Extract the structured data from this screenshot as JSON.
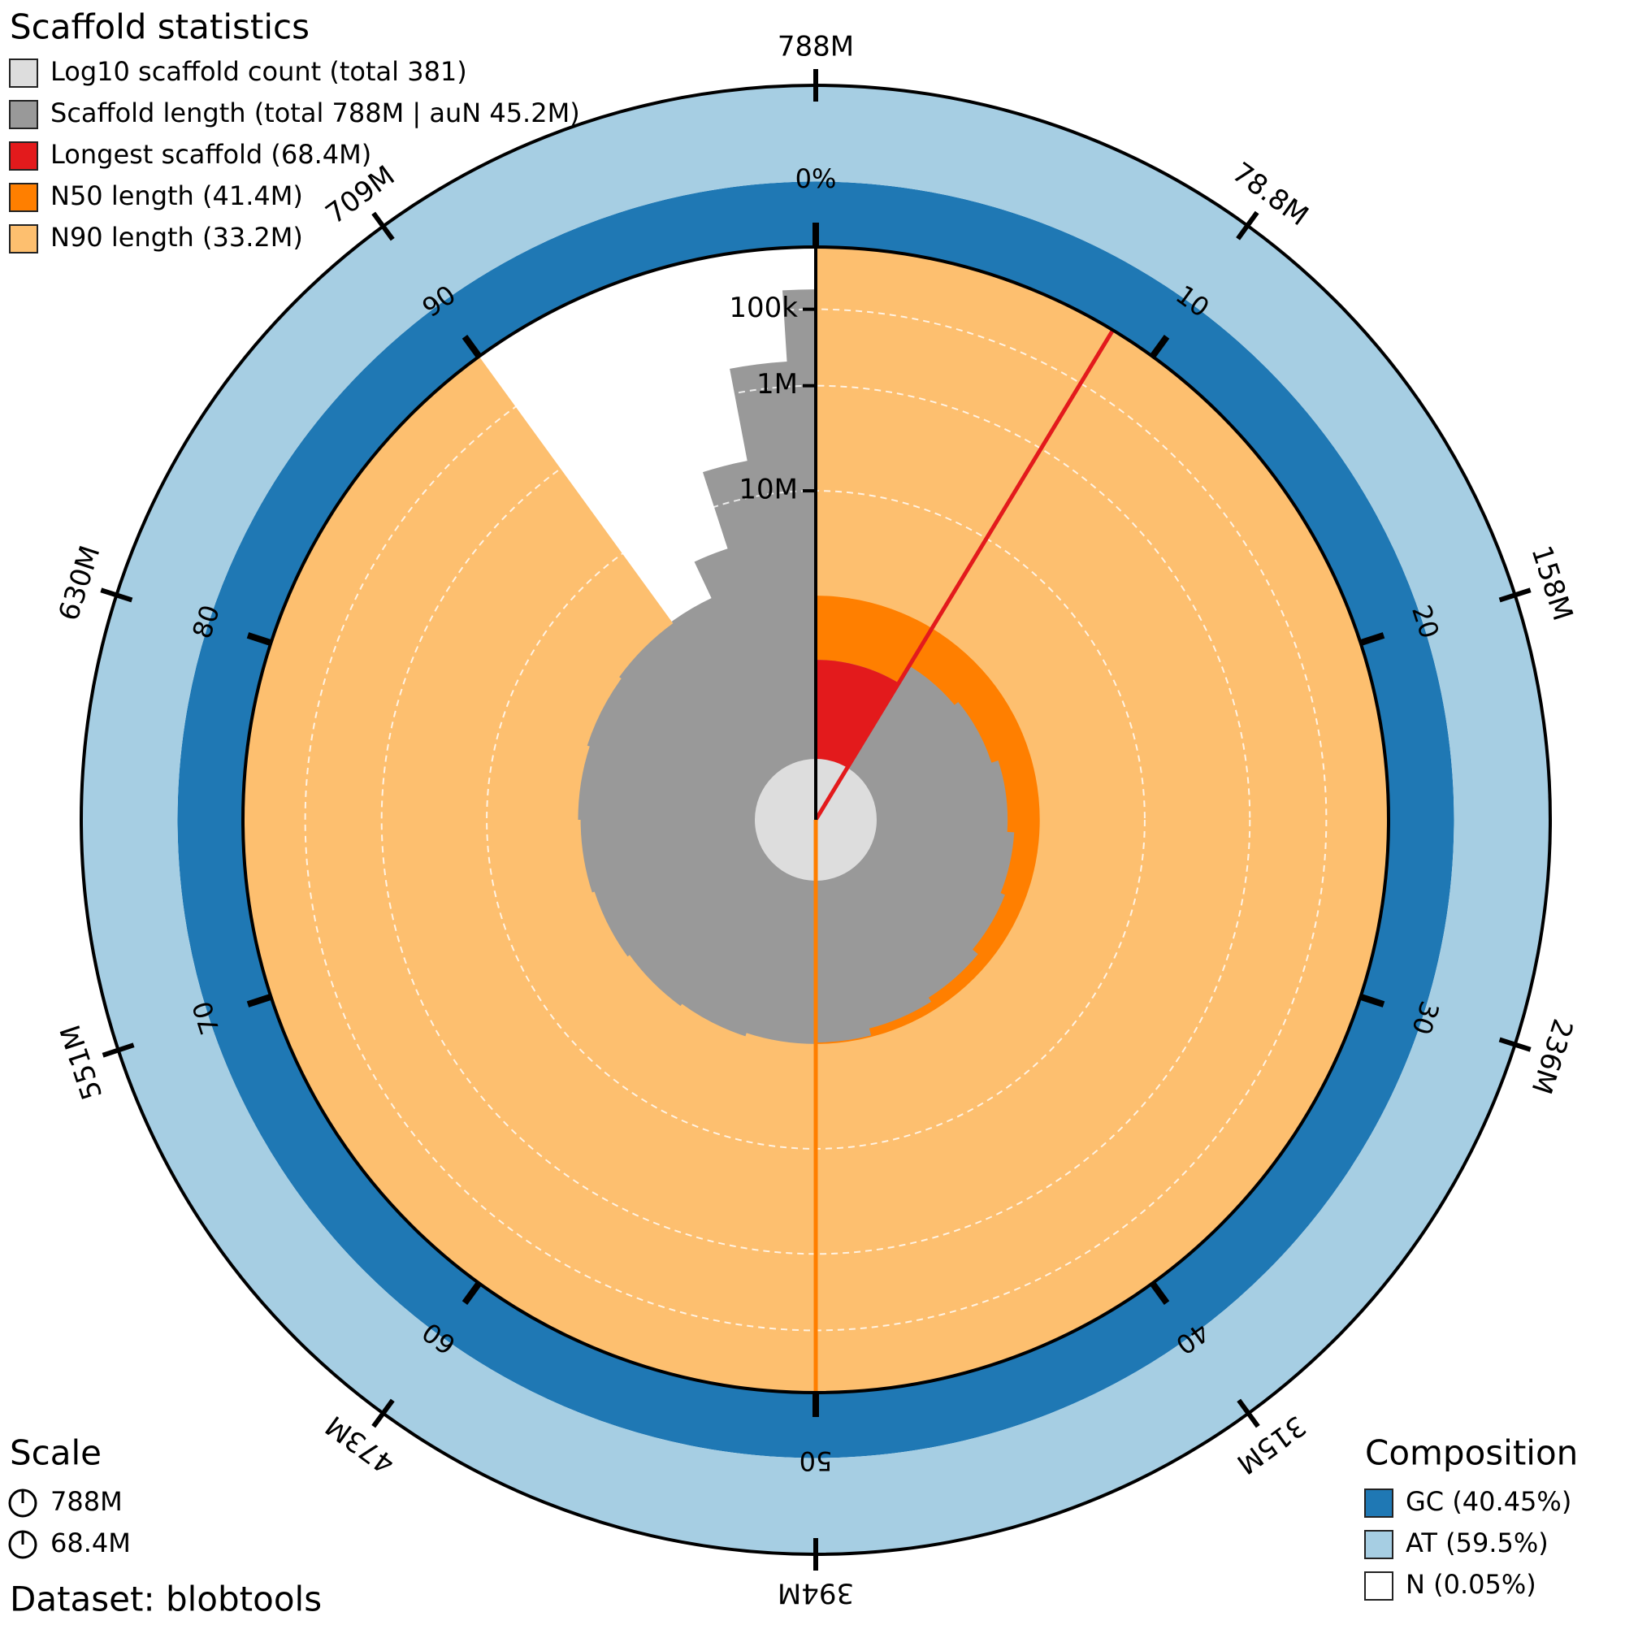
{
  "chart_data": {
    "type": "snail",
    "title": "Scaffold statistics",
    "dataset": "Dataset: blobtools",
    "xlim": [
      0,
      788000000
    ],
    "xticks": [
      {
        "value": 78800000,
        "label": "78.8M"
      },
      {
        "value": 158000000,
        "label": "158M"
      },
      {
        "value": 236000000,
        "label": "236M"
      },
      {
        "value": 315000000,
        "label": "315M"
      },
      {
        "value": 394000000,
        "label": "394M"
      },
      {
        "value": 473000000,
        "label": "473M"
      },
      {
        "value": 551000000,
        "label": "551M"
      },
      {
        "value": 630000000,
        "label": "630M"
      },
      {
        "value": 709000000,
        "label": "709M"
      },
      {
        "value": 788000000,
        "label": "788M"
      }
    ],
    "percent_lim": [
      0,
      100
    ],
    "percent_ticks": [
      {
        "value": 0,
        "label": "0%"
      },
      10,
      20,
      30,
      40,
      50,
      60,
      70,
      80,
      90
    ],
    "ylim": [
      10000,
      100000000
    ],
    "log_scale": true,
    "yticks": [
      {
        "value": 100000,
        "label": "100k"
      },
      {
        "value": 1000000,
        "label": "1M"
      },
      {
        "value": 10000000,
        "label": "10M"
      }
    ],
    "grid": true,
    "series": [
      {
        "name": "Log10 scaffold count (total 381)",
        "color": "#dddddd"
      },
      {
        "name": "Scaffold length (total 788M | auN 45.2M)",
        "color": "#999999",
        "x": [
          0,
          8.7,
          14,
          20,
          26,
          31,
          36,
          41,
          46,
          50,
          55,
          60,
          65,
          70,
          75,
          80,
          85,
          90,
          93,
          95,
          97,
          99
        ],
        "values": [
          68400000,
          60000000,
          58000000,
          55000000,
          52000000,
          50000000,
          47000000,
          45000000,
          42000000,
          41400000,
          40000000,
          39000000,
          38000000,
          37000000,
          36000000,
          35000000,
          34000000,
          33200000,
          20000000,
          5000000,
          500000,
          50000
        ]
      },
      {
        "name": "Longest scaffold (68.4M)",
        "color": "#e31a1c",
        "value": 68400000
      },
      {
        "name": "N50 length (41.4M)",
        "color": "#ff7f00",
        "value": 41400000,
        "percent": 50
      },
      {
        "name": "N90 length (33.2M)",
        "color": "#fdbf6f",
        "value": 33200000,
        "percent": 90
      }
    ],
    "scale_title": "Scale",
    "scale": [
      "788M",
      "68.4M"
    ],
    "composition_title": "Composition",
    "composition": [
      {
        "name": "GC (40.45%)",
        "color": "#1f78b4",
        "value": 40.45
      },
      {
        "name": "AT (59.5%)",
        "color": "#a6cee3",
        "value": 59.5
      },
      {
        "name": "N (0.05%)",
        "color": "#ffffff",
        "value": 0.05
      }
    ]
  }
}
